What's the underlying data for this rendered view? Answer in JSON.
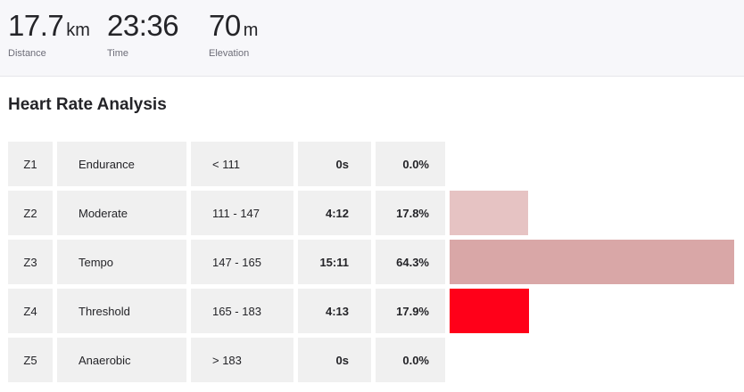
{
  "summary": {
    "distance": {
      "value": "17.7",
      "unit": "km",
      "label": "Distance"
    },
    "time": {
      "value": "23:36",
      "unit": "",
      "label": "Time"
    },
    "elevation": {
      "value": "70",
      "unit": "m",
      "label": "Elevation"
    }
  },
  "heart_rate": {
    "title": "Heart Rate Analysis",
    "zones": [
      {
        "zone": "Z1",
        "name": "Endurance",
        "range": "< 111",
        "time": "0s",
        "percent": "0.0%",
        "fraction": 0.0,
        "color": "#e6c3c3"
      },
      {
        "zone": "Z2",
        "name": "Moderate",
        "range": "111 - 147",
        "time": "4:12",
        "percent": "17.8%",
        "fraction": 0.178,
        "color": "#e6c3c3"
      },
      {
        "zone": "Z3",
        "name": "Tempo",
        "range": "147 - 165",
        "time": "15:11",
        "percent": "64.3%",
        "fraction": 0.643,
        "color": "#d9a7a7"
      },
      {
        "zone": "Z4",
        "name": "Threshold",
        "range": "165 - 183",
        "time": "4:13",
        "percent": "17.9%",
        "fraction": 0.179,
        "color": "#ff0019"
      },
      {
        "zone": "Z5",
        "name": "Anaerobic",
        "range": "> 183",
        "time": "0s",
        "percent": "0.0%",
        "fraction": 0.0,
        "color": "#c8001a"
      }
    ]
  }
}
